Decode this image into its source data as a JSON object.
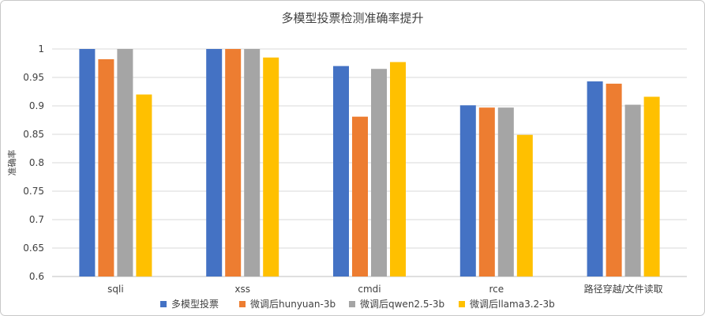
{
  "chart_data": {
    "type": "bar",
    "title": "多模型投票检测准确率提升",
    "xlabel": "",
    "ylabel": "准确率",
    "ylim": [
      0.6,
      1.0
    ],
    "yticks": [
      "0.6",
      "0.65",
      "0.7",
      "0.75",
      "0.8",
      "0.85",
      "0.9",
      "0.95",
      "1"
    ],
    "grid": true,
    "legend_position": "bottom",
    "categories": [
      "sqli",
      "xss",
      "cmdi",
      "rce",
      "路径穿越/文件读取"
    ],
    "series": [
      {
        "name": "多模型投票",
        "color": "#4472C4",
        "values": [
          1.0,
          1.0,
          0.97,
          0.901,
          0.943
        ]
      },
      {
        "name": "微调后hunyuan-3b",
        "color": "#ED7D31",
        "values": [
          0.982,
          1.0,
          0.881,
          0.897,
          0.939
        ]
      },
      {
        "name": "微调后qwen2.5-3b",
        "color": "#A5A5A5",
        "values": [
          1.0,
          1.0,
          0.965,
          0.897,
          0.902
        ]
      },
      {
        "name": "微调后llama3.2-3b",
        "color": "#FFC000",
        "values": [
          0.92,
          0.985,
          0.977,
          0.849,
          0.916
        ]
      }
    ]
  }
}
